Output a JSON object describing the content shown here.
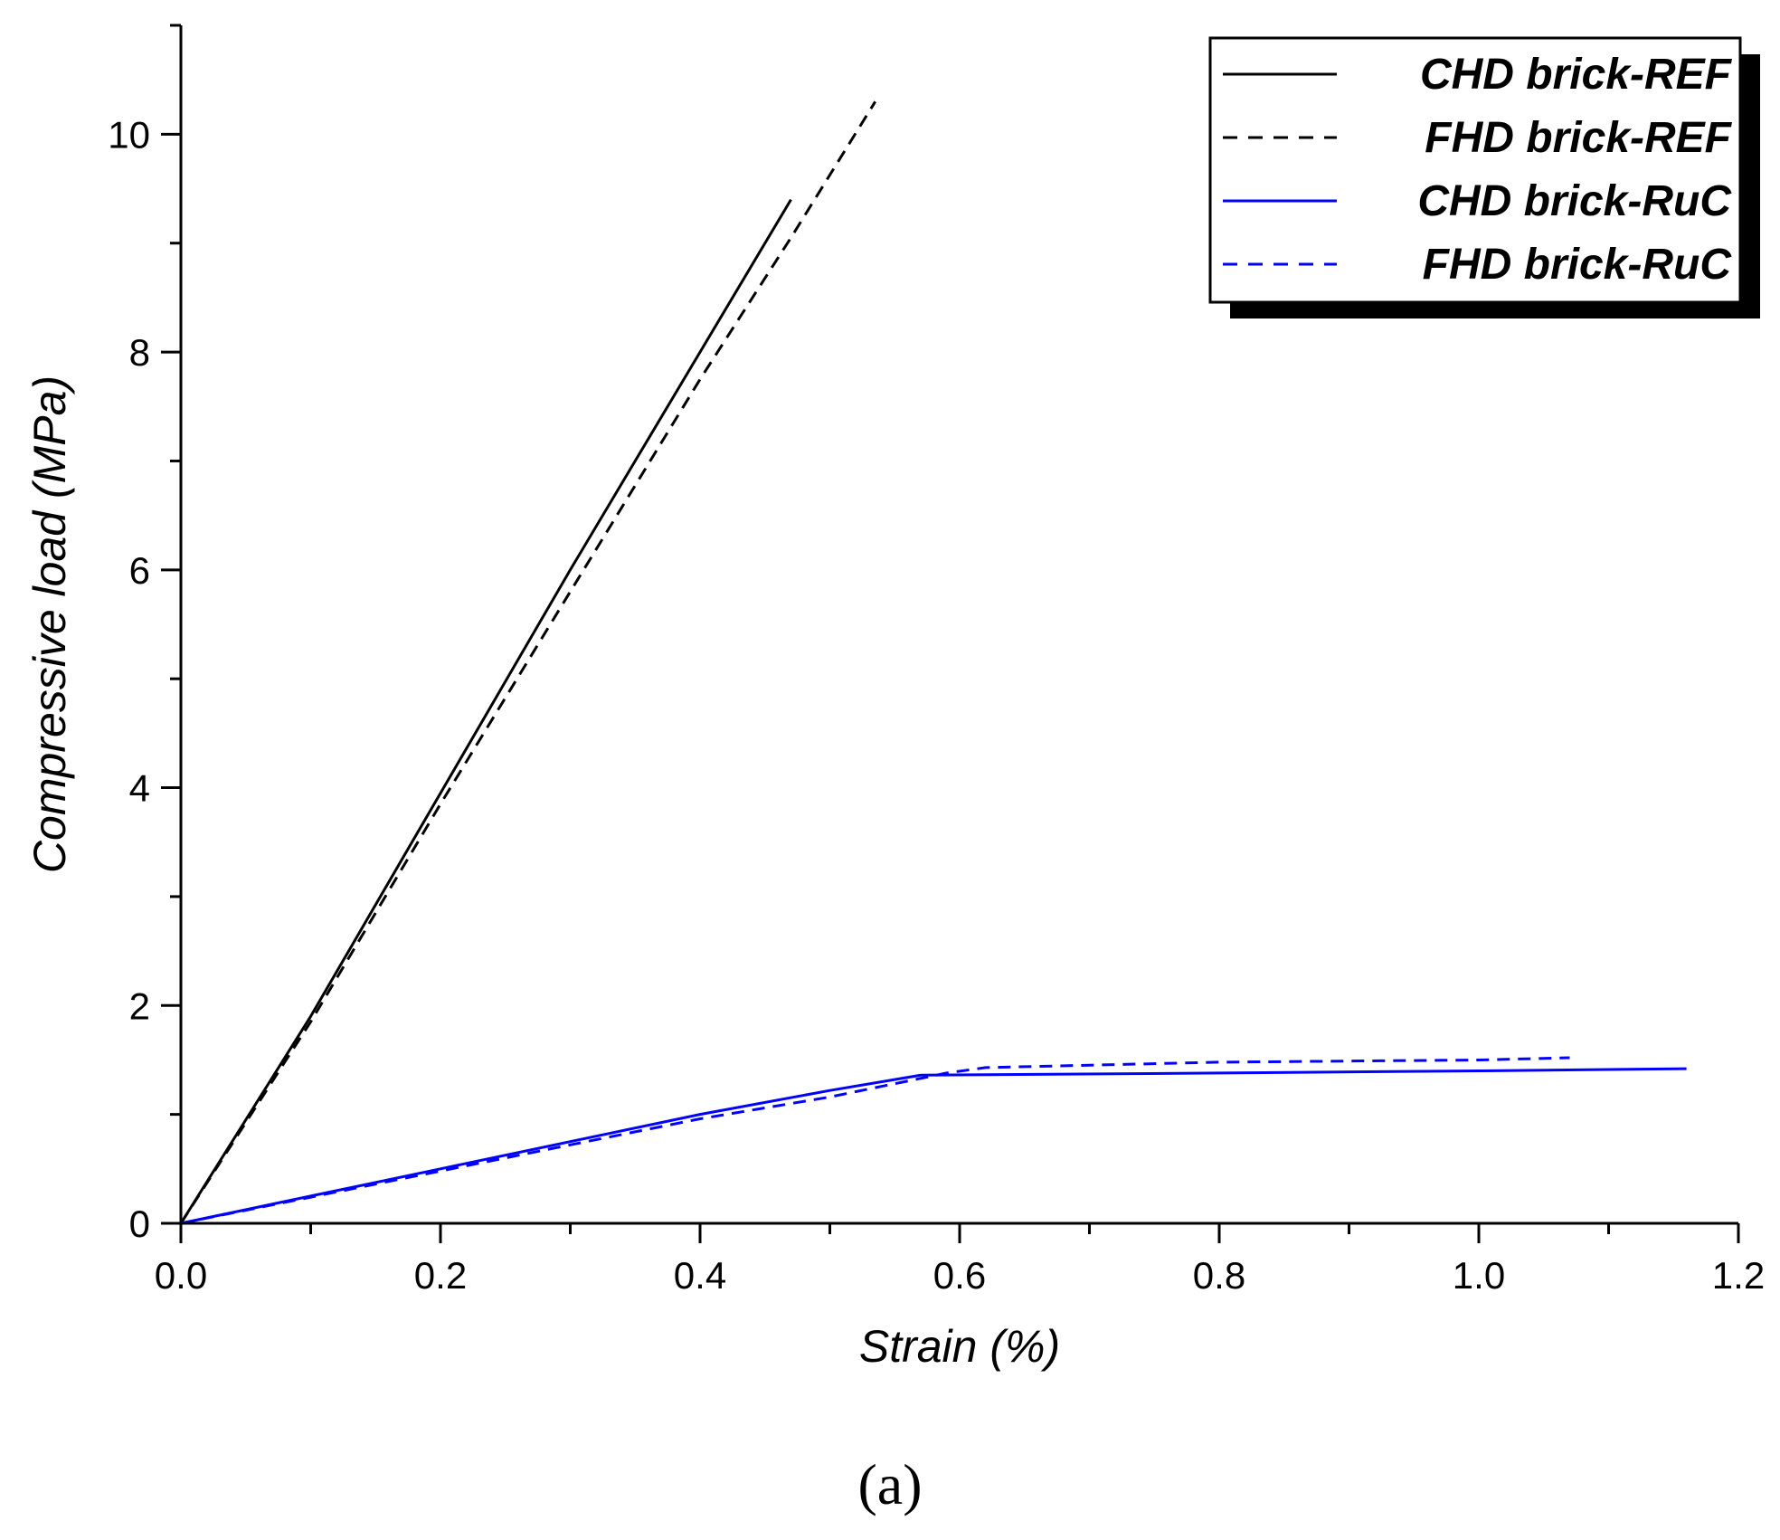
{
  "chart_data": {
    "type": "line",
    "title": "",
    "xlabel": "Strain (%)",
    "ylabel": "Compressive load (MPa)",
    "xlim": [
      0,
      1.2
    ],
    "ylim": [
      0,
      11
    ],
    "x_ticks": [
      0.0,
      0.2,
      0.4,
      0.6,
      0.8,
      1.0,
      1.2
    ],
    "x_tick_labels": [
      "0.0",
      "0.2",
      "0.4",
      "0.6",
      "0.8",
      "1.0",
      "1.2"
    ],
    "y_ticks": [
      0,
      2,
      4,
      6,
      8,
      10
    ],
    "y_tick_labels": [
      "0",
      "2",
      "4",
      "6",
      "8",
      "10"
    ],
    "grid": false,
    "legend_position": "top-right",
    "series": [
      {
        "name": "CHD brick-REF",
        "color": "#000000",
        "dash": "solid",
        "points": [
          [
            0.0,
            0.0
          ],
          [
            0.1,
            1.9
          ],
          [
            0.2,
            3.95
          ],
          [
            0.3,
            6.0
          ],
          [
            0.4,
            8.0
          ],
          [
            0.47,
            9.4
          ]
        ]
      },
      {
        "name": "FHD brick-REF",
        "color": "#000000",
        "dash": "dashed",
        "points": [
          [
            0.0,
            0.0
          ],
          [
            0.1,
            1.85
          ],
          [
            0.2,
            3.85
          ],
          [
            0.3,
            5.8
          ],
          [
            0.4,
            7.75
          ],
          [
            0.47,
            9.05
          ],
          [
            0.535,
            10.3
          ]
        ]
      },
      {
        "name": "CHD brick-RuC",
        "color": "#0000ff",
        "dash": "solid",
        "points": [
          [
            0.0,
            0.0
          ],
          [
            0.1,
            0.25
          ],
          [
            0.2,
            0.5
          ],
          [
            0.3,
            0.75
          ],
          [
            0.4,
            1.0
          ],
          [
            0.5,
            1.22
          ],
          [
            0.57,
            1.36
          ],
          [
            0.8,
            1.38
          ],
          [
            1.0,
            1.4
          ],
          [
            1.16,
            1.42
          ]
        ]
      },
      {
        "name": "FHD brick-RuC",
        "color": "#0000ff",
        "dash": "dashed",
        "points": [
          [
            0.0,
            0.0
          ],
          [
            0.1,
            0.24
          ],
          [
            0.2,
            0.48
          ],
          [
            0.3,
            0.72
          ],
          [
            0.4,
            0.96
          ],
          [
            0.5,
            1.16
          ],
          [
            0.59,
            1.38
          ],
          [
            0.62,
            1.43
          ],
          [
            0.8,
            1.48
          ],
          [
            1.0,
            1.5
          ],
          [
            1.07,
            1.52
          ]
        ]
      }
    ]
  },
  "panel_label": "(a)"
}
